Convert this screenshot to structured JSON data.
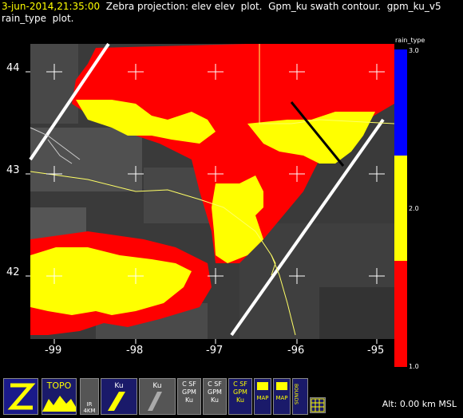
{
  "header": {
    "timestamp": "3-jun-2014,21:35:00",
    "line1_rest": "  Zebra projection: elev elev  plot.  Gpm_ku swath contour.  gpm_ku_v5",
    "line2": "rain_type  plot."
  },
  "axes": {
    "x_ticks": [
      "-99",
      "-98",
      "-97",
      "-96",
      "-95"
    ],
    "y_ticks": [
      "44",
      "43",
      "42"
    ]
  },
  "colorbar": {
    "title": "rain_type",
    "labels": [
      "3.0",
      "2.0",
      "1.0"
    ],
    "colors": [
      "#0000ff",
      "#ffff00",
      "#ff0000"
    ]
  },
  "taskbar": {
    "buttons": [
      {
        "name": "zebra-logo-button",
        "text": "Z"
      },
      {
        "name": "topo-button",
        "text": "TOPO"
      },
      {
        "name": "ir-4km-button",
        "text": "IR 4KM"
      },
      {
        "name": "gpm-ku-button-1",
        "text": "Ku"
      },
      {
        "name": "gpm-ku-button-2",
        "text": "Ku"
      },
      {
        "name": "c-sf-gpm-ku-button-1",
        "text": "C SF GPM Ku"
      },
      {
        "name": "c-sf-gpm-ku-button-2",
        "text": "C SF GPM Ku"
      },
      {
        "name": "c-sf-gpm-ku-button-3",
        "text": "C SF GPM Ku"
      },
      {
        "name": "us-map-button",
        "text": "MAP"
      },
      {
        "name": "county-map-button",
        "text": "MAP"
      },
      {
        "name": "bounds-button",
        "text": "BOUNDS"
      },
      {
        "name": "grid-button",
        "text": ""
      }
    ],
    "altitude": "Alt: 0.00 km MSL"
  },
  "colors": {
    "background": "#000000",
    "plot_bg": "#3c3c3c",
    "rain_stratiform": "#ff0000",
    "rain_convective": "#ffff00",
    "rain_other": "#0000ff",
    "title_highlight": "#ffff00"
  }
}
